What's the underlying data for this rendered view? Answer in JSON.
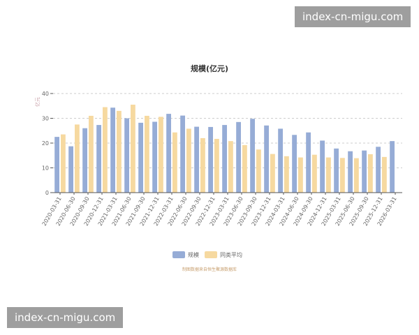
{
  "watermark_top": "index-cn-migu.com",
  "watermark_bottom": "index-cn-migu.com",
  "source_note": "制图数据来自恒生聚源数据库",
  "chart_data": {
    "type": "bar",
    "title": "规模(亿元)",
    "ylabel": "亿元",
    "xlabel": "",
    "ylim": [
      0,
      40
    ],
    "yticks": [
      0,
      10,
      20,
      30,
      40
    ],
    "grid": true,
    "legend_position": "bottom",
    "categories": [
      "2020-03-31",
      "2020-06-30",
      "2020-09-30",
      "2020-12-31",
      "2021-03-31",
      "2021-06-30",
      "2021-09-30",
      "2021-12-31",
      "2022-03-31",
      "2022-06-30",
      "2022-09-30",
      "2022-12-31",
      "2023-03-31",
      "2023-06-30",
      "2023-09-30",
      "2023-12-31",
      "2024-03-31",
      "2024-06-30",
      "2024-09-30",
      "2024-12-31",
      "2025-03-31",
      "2025-06-30",
      "2025-09-30",
      "2025-12-31",
      "2026-03-31"
    ],
    "series": [
      {
        "name": "规模",
        "color": "#96acd6",
        "values": [
          22.5,
          18.7,
          26.0,
          27.3,
          34.3,
          30.0,
          28.2,
          28.6,
          31.8,
          31.1,
          26.6,
          26.5,
          27.3,
          28.5,
          29.8,
          27.1,
          25.8,
          23.3,
          24.3,
          21.0,
          17.8,
          16.7,
          17.0,
          18.5,
          20.8
        ]
      },
      {
        "name": "同类平均",
        "color": "#f6d9a0",
        "values": [
          23.5,
          27.5,
          31.0,
          34.5,
          33.0,
          35.5,
          31.0,
          30.6,
          24.3,
          25.8,
          22.0,
          21.7,
          20.8,
          19.2,
          17.4,
          15.6,
          14.7,
          14.2,
          15.3,
          14.2,
          14.0,
          13.9,
          15.5,
          14.4,
          null
        ]
      }
    ]
  }
}
